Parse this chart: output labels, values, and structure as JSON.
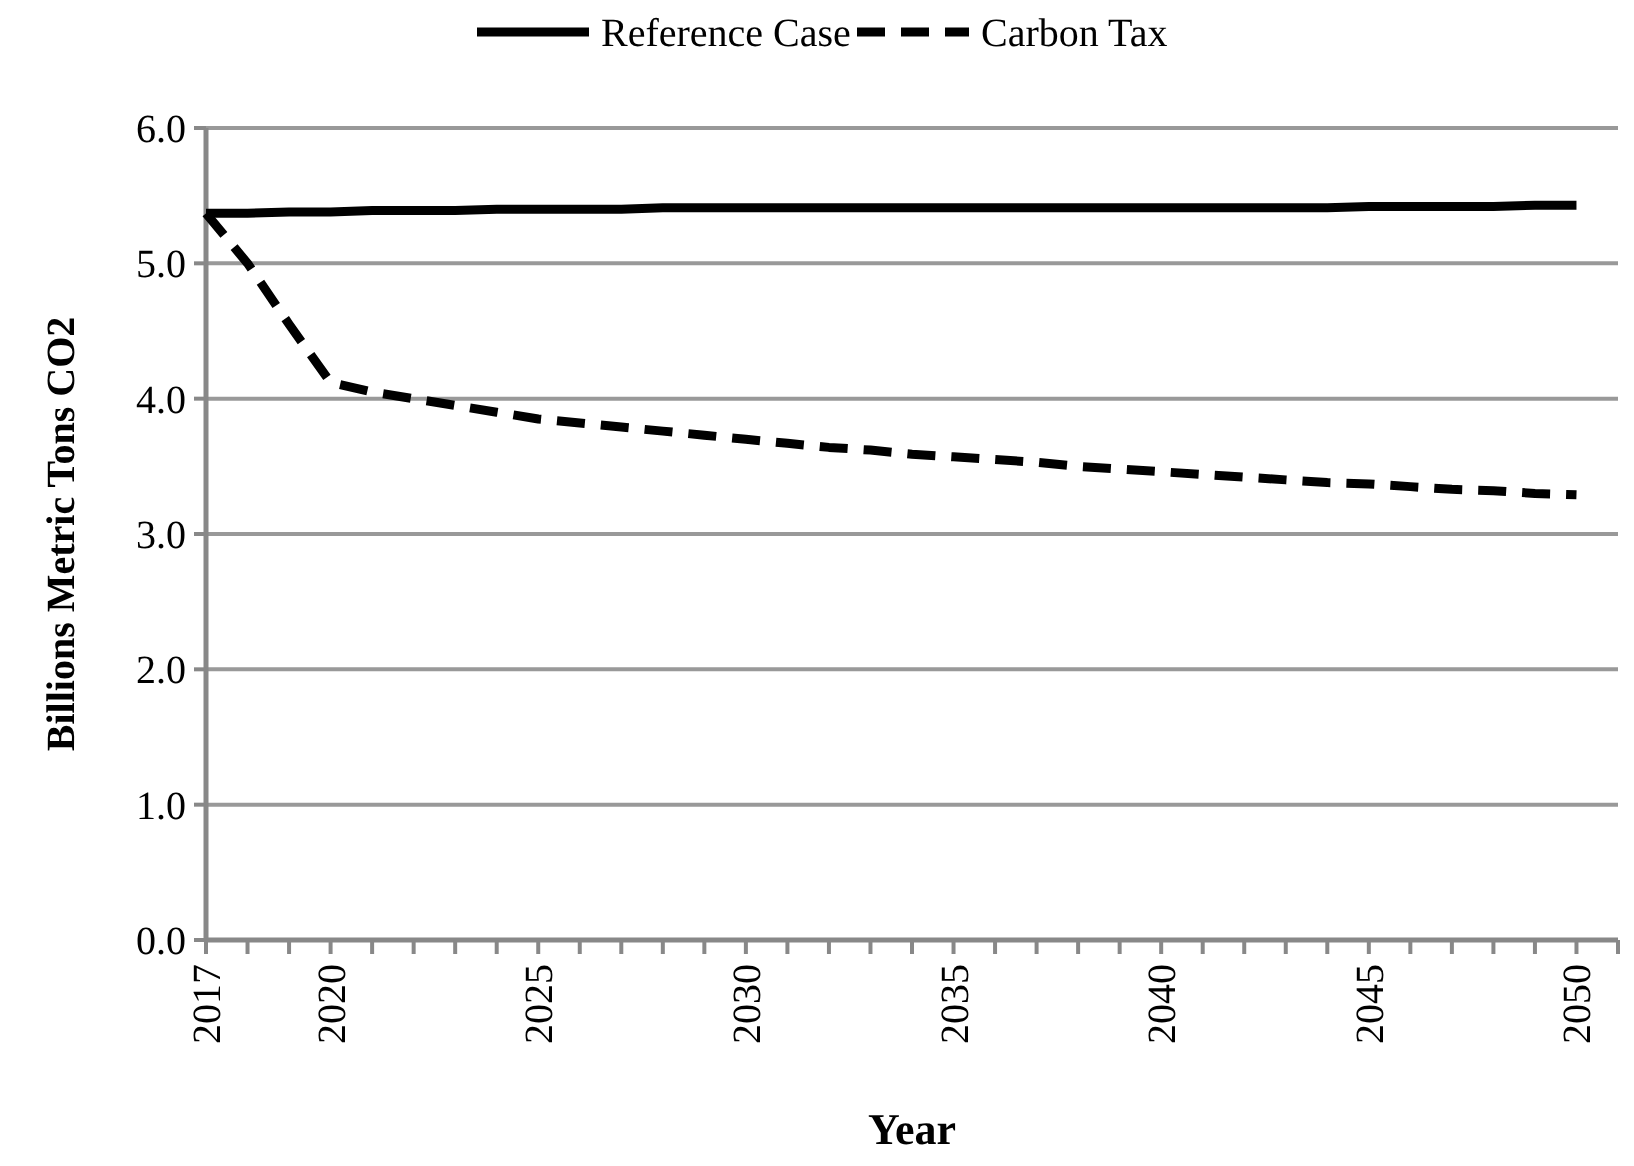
{
  "chart_data": {
    "type": "line",
    "xlabel": "Year",
    "ylabel": "Billions Metric Tons CO2",
    "x": [
      2017,
      2018,
      2019,
      2020,
      2021,
      2022,
      2023,
      2024,
      2025,
      2026,
      2027,
      2028,
      2029,
      2030,
      2031,
      2032,
      2033,
      2034,
      2035,
      2036,
      2037,
      2038,
      2039,
      2040,
      2041,
      2042,
      2043,
      2044,
      2045,
      2046,
      2047,
      2048,
      2049,
      2050
    ],
    "series": [
      {
        "name": "Reference Case",
        "color": "#000000",
        "line_style": "solid",
        "values": [
          5.37,
          5.37,
          5.38,
          5.38,
          5.39,
          5.39,
          5.39,
          5.4,
          5.4,
          5.4,
          5.4,
          5.41,
          5.41,
          5.41,
          5.41,
          5.41,
          5.41,
          5.41,
          5.41,
          5.41,
          5.41,
          5.41,
          5.41,
          5.41,
          5.41,
          5.41,
          5.41,
          5.41,
          5.42,
          5.42,
          5.42,
          5.42,
          5.43,
          5.43
        ]
      },
      {
        "name": "Carbon Tax",
        "color": "#000000",
        "line_style": "dashed",
        "values": [
          5.37,
          5.0,
          4.55,
          4.12,
          4.05,
          4.0,
          3.95,
          3.9,
          3.85,
          3.82,
          3.79,
          3.76,
          3.73,
          3.7,
          3.67,
          3.64,
          3.62,
          3.59,
          3.57,
          3.55,
          3.53,
          3.5,
          3.48,
          3.46,
          3.44,
          3.42,
          3.4,
          3.38,
          3.37,
          3.35,
          3.33,
          3.32,
          3.3,
          3.29
        ]
      }
    ],
    "xlim": [
      2017,
      2051
    ],
    "xticks": [
      2017,
      {
        "value": 2018,
        "label": null
      },
      {
        "value": 2019,
        "label": null
      },
      2020,
      {
        "value": 2021,
        "label": null
      },
      {
        "value": 2022,
        "label": null
      },
      {
        "value": 2023,
        "label": null
      },
      {
        "value": 2024,
        "label": null
      },
      2025,
      {
        "value": 2026,
        "label": null
      },
      {
        "value": 2027,
        "label": null
      },
      {
        "value": 2028,
        "label": null
      },
      {
        "value": 2029,
        "label": null
      },
      2030,
      {
        "value": 2031,
        "label": null
      },
      {
        "value": 2032,
        "label": null
      },
      {
        "value": 2033,
        "label": null
      },
      {
        "value": 2034,
        "label": null
      },
      2035,
      {
        "value": 2036,
        "label": null
      },
      {
        "value": 2037,
        "label": null
      },
      {
        "value": 2038,
        "label": null
      },
      {
        "value": 2039,
        "label": null
      },
      2040,
      {
        "value": 2041,
        "label": null
      },
      {
        "value": 2042,
        "label": null
      },
      {
        "value": 2043,
        "label": null
      },
      {
        "value": 2044,
        "label": null
      },
      2045,
      {
        "value": 2046,
        "label": null
      },
      {
        "value": 2047,
        "label": null
      },
      {
        "value": 2048,
        "label": null
      },
      {
        "value": 2049,
        "label": null
      },
      2050,
      {
        "value": 2051,
        "label": null
      }
    ],
    "ylim": [
      0,
      6
    ],
    "yticks": [
      {
        "value": 0,
        "label": "0.0"
      },
      {
        "value": 1,
        "label": "1.0"
      },
      {
        "value": 2,
        "label": "2.0"
      },
      {
        "value": 3,
        "label": "3.0"
      },
      {
        "value": 4,
        "label": "4.0"
      },
      {
        "value": 5,
        "label": "5.0"
      },
      {
        "value": 6,
        "label": "6.0"
      }
    ],
    "grid": "y",
    "legend": "top",
    "marker": "none"
  }
}
